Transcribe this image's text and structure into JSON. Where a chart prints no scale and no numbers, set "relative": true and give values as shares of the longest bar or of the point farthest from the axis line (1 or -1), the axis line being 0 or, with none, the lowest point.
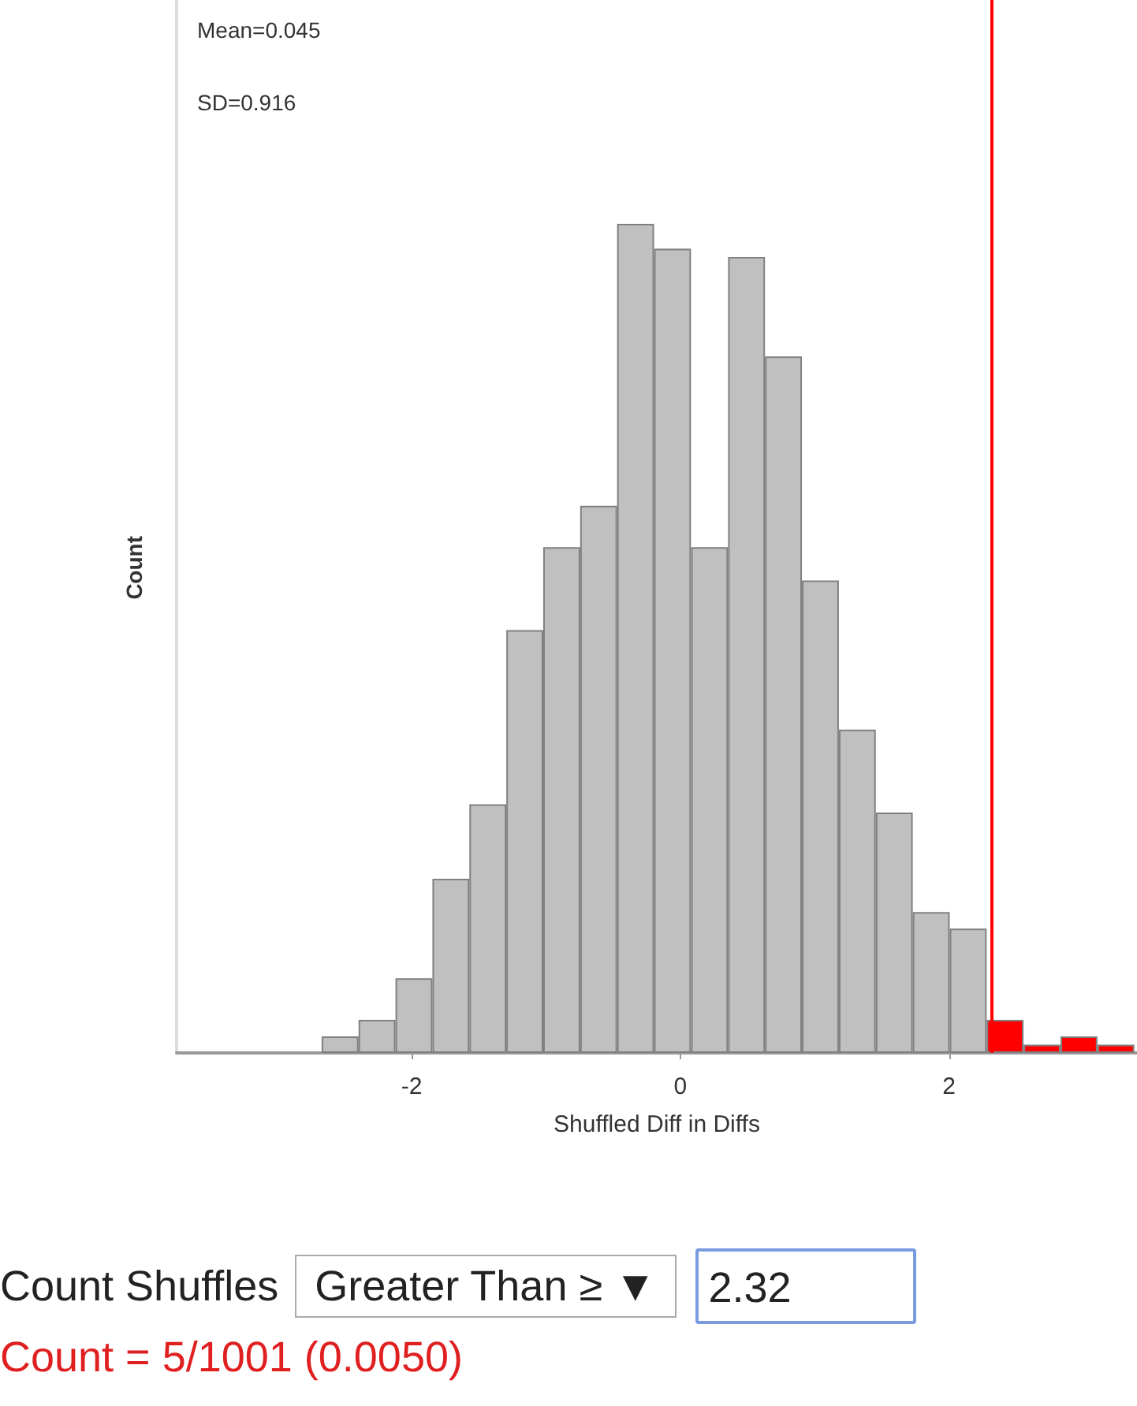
{
  "chart_data": {
    "type": "bar",
    "xlabel": "Shuffled Diff in Diffs",
    "ylabel": "Count",
    "relative": true,
    "x": [
      -2.533,
      -2.258,
      -1.983,
      -1.708,
      -1.433,
      -1.158,
      -0.883,
      -0.608,
      -0.333,
      -0.058,
      0.218,
      0.493,
      0.768,
      1.043,
      1.318,
      1.593,
      1.868,
      2.143,
      2.418,
      2.693,
      2.968,
      3.243
    ],
    "values": [
      0.02,
      0.04,
      0.09,
      0.21,
      0.3,
      0.51,
      0.61,
      0.66,
      1,
      0.97,
      0.61,
      0.96,
      0.84,
      0.57,
      0.39,
      0.29,
      0.17,
      0.15,
      0.04,
      0.01,
      0.02,
      0.01
    ],
    "colors": [
      "#c0c0c0",
      "#c0c0c0",
      "#c0c0c0",
      "#c0c0c0",
      "#c0c0c0",
      "#c0c0c0",
      "#c0c0c0",
      "#c0c0c0",
      "#c0c0c0",
      "#c0c0c0",
      "#c0c0c0",
      "#c0c0c0",
      "#c0c0c0",
      "#c0c0c0",
      "#c0c0c0",
      "#c0c0c0",
      "#c0c0c0",
      "#c0c0c0",
      "#ff0000",
      "#ff0000",
      "#ff0000",
      "#ff0000"
    ],
    "xlim": [
      -3.75,
      3.4
    ],
    "xticks": [
      -2,
      0,
      2
    ],
    "grid": false,
    "ref_lines": [
      {
        "axis": "x",
        "value": 2.32,
        "color": "#ff0000"
      }
    ],
    "annotations": [
      "Mean=0.045",
      "SD=0.916",
      "Count Shuffles",
      "Greater Than ≥ ▼",
      "2.32",
      "Count = 5/1001 (0.0050)"
    ]
  }
}
